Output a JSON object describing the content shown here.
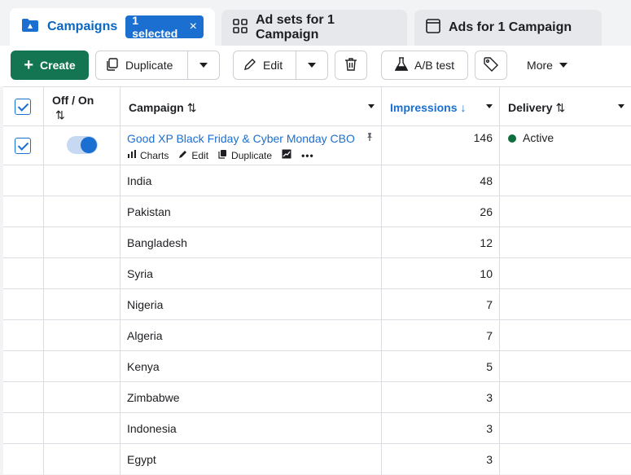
{
  "tabs": {
    "campaigns": {
      "label": "Campaigns",
      "badge": "1 selected",
      "badge_close": "×",
      "icon": "folder-icon"
    },
    "adsets": {
      "label": "Ad sets for 1 Campaign",
      "icon": "grid-icon"
    },
    "ads": {
      "label": "Ads for 1 Campaign",
      "icon": "window-icon"
    }
  },
  "toolbar": {
    "create_label": "Create",
    "duplicate_label": "Duplicate",
    "edit_label": "Edit",
    "ab_test_label": "A/B test",
    "more_label": "More"
  },
  "columns": {
    "offon": "Off / On",
    "campaign": "Campaign",
    "impressions": "Impressions",
    "delivery": "Delivery",
    "sort_glyph": "⇅",
    "sort_desc_glyph": "↓"
  },
  "campaign_row": {
    "name": "Good XP Black Friday & Cyber Monday CBO",
    "impressions": "146",
    "delivery": "Active",
    "actions": {
      "charts": "Charts",
      "edit": "Edit",
      "duplicate": "Duplicate",
      "more": "•••"
    },
    "toggle_on": true,
    "checked": true
  },
  "breakdown_rows": [
    {
      "country": "India",
      "impressions": "48"
    },
    {
      "country": "Pakistan",
      "impressions": "26"
    },
    {
      "country": "Bangladesh",
      "impressions": "12"
    },
    {
      "country": "Syria",
      "impressions": "10"
    },
    {
      "country": "Nigeria",
      "impressions": "7"
    },
    {
      "country": "Algeria",
      "impressions": "7"
    },
    {
      "country": "Kenya",
      "impressions": "5"
    },
    {
      "country": "Zimbabwe",
      "impressions": "3"
    },
    {
      "country": "Indonesia",
      "impressions": "3"
    },
    {
      "country": "Egypt",
      "impressions": "3"
    }
  ],
  "colors": {
    "accent": "#1a6fd1",
    "create": "#137552",
    "active_dot": "#0e6d3d"
  }
}
